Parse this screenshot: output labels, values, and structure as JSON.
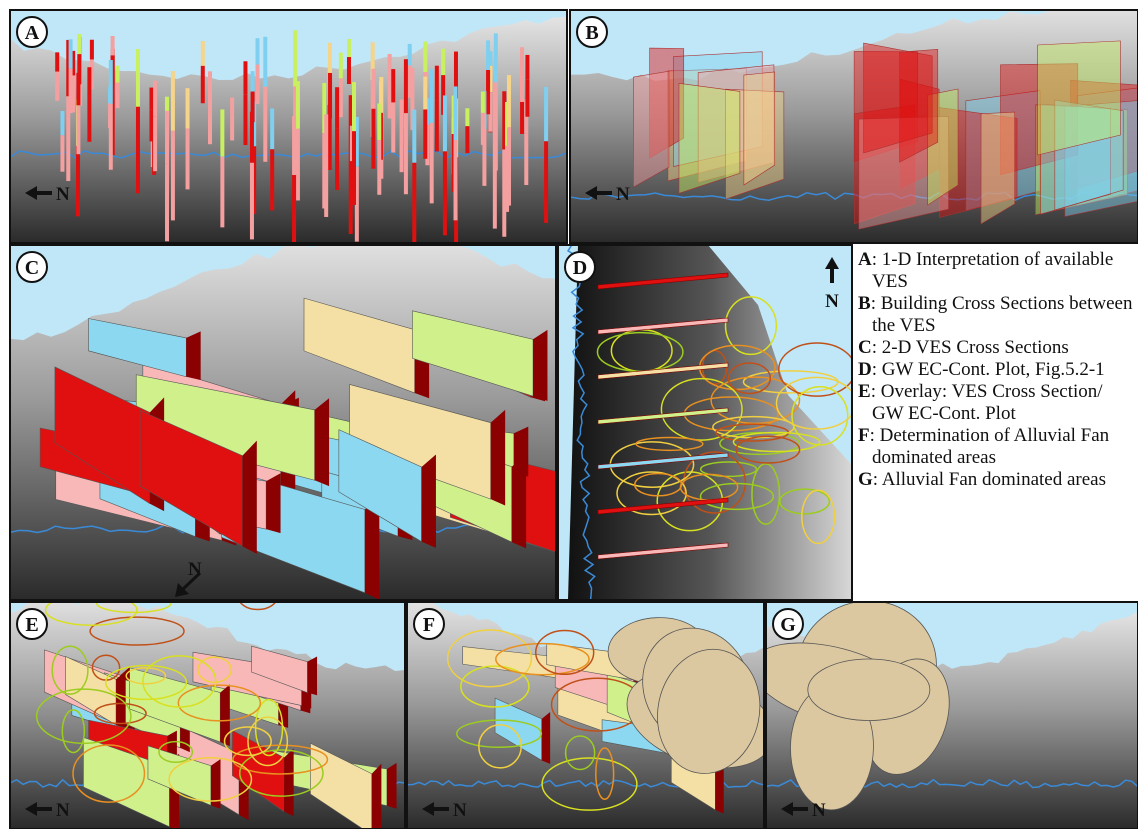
{
  "panels": [
    {
      "letter": "A",
      "north": "N"
    },
    {
      "letter": "B",
      "north": "N"
    },
    {
      "letter": "C",
      "north": "N"
    },
    {
      "letter": "D",
      "north": "N"
    },
    {
      "letter": "E",
      "north": "N"
    },
    {
      "letter": "F",
      "north": "N"
    },
    {
      "letter": "G",
      "north": "N"
    }
  ],
  "legend": [
    {
      "key": "A",
      "text": ": 1-D Interpretation of available VES"
    },
    {
      "key": "B",
      "text": ": Building Cross Sections between the VES"
    },
    {
      "key": "C",
      "text": ": 2-D VES Cross Sections"
    },
    {
      "key": "D",
      "text": ": GW EC-Cont. Plot, Fig.5.2-1"
    },
    {
      "key": "E",
      "text": ": Overlay: VES Cross Section/ GW EC-Cont. Plot"
    },
    {
      "key": "F",
      "text": ": Determination of Alluvial Fan dominated areas"
    },
    {
      "key": "G",
      "text": ": Alluvial Fan dominated areas"
    }
  ]
}
